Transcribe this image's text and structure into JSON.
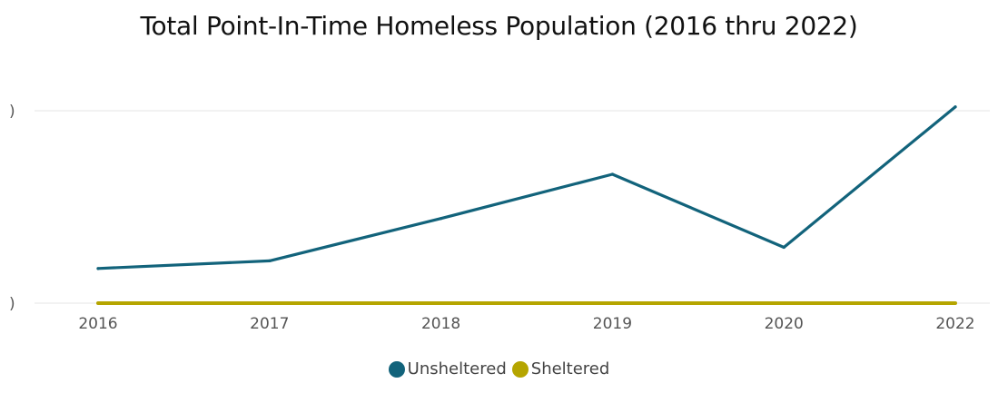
{
  "chart_data": {
    "type": "line",
    "title": "Total Point-In-Time Homeless Population (2016 thru 2022)",
    "xlabel": "",
    "ylabel": "",
    "categories": [
      "2016",
      "2017",
      "2018",
      "2019",
      "2020",
      "2022"
    ],
    "y_ticks": [
      ")",
      ")"
    ],
    "ylim": [
      0,
      100
    ],
    "grid": true,
    "legend_position": "bottom",
    "series": [
      {
        "name": "Unsheltered",
        "color": "#12637b",
        "values": [
          18,
          22,
          44,
          67,
          29,
          102
        ]
      },
      {
        "name": "Sheltered",
        "color": "#b5a500",
        "values": [
          0,
          0,
          0,
          0,
          0,
          0
        ]
      }
    ]
  }
}
